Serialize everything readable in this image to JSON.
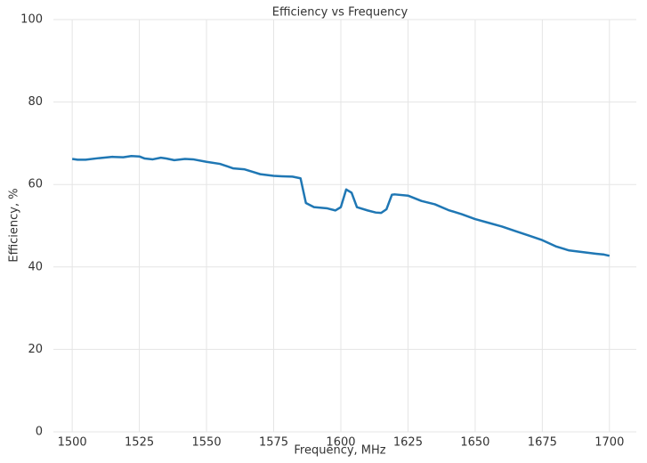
{
  "chart_data": {
    "type": "line",
    "title": "Efficiency vs Frequency",
    "x_label": "Frequency, MHz",
    "y_label": "Efficiency, %",
    "x": [
      1500,
      1502,
      1505,
      1510,
      1515,
      1519,
      1522,
      1525,
      1527,
      1530,
      1533,
      1535,
      1538,
      1542,
      1545,
      1550,
      1555,
      1560,
      1564,
      1567,
      1570,
      1575,
      1578,
      1582,
      1585,
      1587,
      1590,
      1595,
      1598,
      1600,
      1602,
      1604,
      1606,
      1610,
      1613,
      1615,
      1617,
      1619,
      1620,
      1625,
      1630,
      1635,
      1640,
      1645,
      1650,
      1655,
      1660,
      1665,
      1670,
      1675,
      1680,
      1685,
      1690,
      1695,
      1698,
      1700
    ],
    "series": [
      {
        "name": "Efficiency",
        "color": "#1f77b4",
        "values": [
          66.2,
          66.0,
          66.0,
          66.4,
          66.7,
          66.6,
          66.9,
          66.8,
          66.3,
          66.1,
          66.5,
          66.3,
          65.9,
          66.2,
          66.1,
          65.5,
          65.0,
          63.9,
          63.7,
          63.1,
          62.5,
          62.1,
          62.0,
          61.9,
          61.5,
          55.5,
          54.5,
          54.2,
          53.7,
          54.5,
          58.8,
          58.0,
          54.5,
          53.7,
          53.2,
          53.1,
          54.0,
          57.5,
          57.6,
          57.3,
          56.0,
          55.2,
          53.8,
          52.8,
          51.6,
          50.7,
          49.8,
          48.7,
          47.6,
          46.5,
          45.0,
          44.0,
          43.6,
          43.2,
          43.0,
          42.7
        ]
      }
    ],
    "xlim": [
      1493,
      1710
    ],
    "ylim": [
      0,
      100
    ],
    "xticks": [
      1500,
      1525,
      1550,
      1575,
      1600,
      1625,
      1650,
      1675,
      1700
    ],
    "yticks": [
      0,
      20,
      40,
      60,
      80,
      100
    ],
    "grid": true
  }
}
